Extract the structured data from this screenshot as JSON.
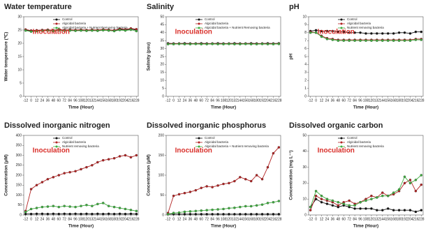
{
  "chart_data": [
    {
      "type": "line",
      "title": "Water temperature",
      "y_label": "Water temperature (℃)",
      "x_label": "Time (Hour)",
      "annotation": "Inoculation",
      "x": [
        -12,
        0,
        12,
        24,
        36,
        48,
        60,
        72,
        84,
        96,
        108,
        120,
        132,
        144,
        156,
        168,
        180,
        192,
        204,
        216,
        228
      ],
      "xticks": [
        -12,
        0,
        12,
        24,
        36,
        48,
        60,
        72,
        84,
        96,
        108,
        120,
        132,
        144,
        156,
        168,
        180,
        192,
        204,
        216,
        228
      ],
      "xlim": [
        -16,
        232
      ],
      "ylim": [
        0,
        30
      ],
      "yticks": [
        0,
        5,
        10,
        15,
        20,
        25,
        30
      ],
      "legend": "top",
      "series": [
        {
          "name": "Control",
          "color": "#111111",
          "values": [
            25.0,
            24.6,
            24.8,
            24.9,
            25.0,
            24.8,
            25.1,
            24.9,
            25.0,
            24.9,
            25.0,
            24.9,
            25.0,
            24.9,
            25.1,
            25.0,
            24.8,
            25.2,
            25.0,
            25.4,
            25.0
          ]
        },
        {
          "name": "Algicidal bacteria",
          "color": "#b22222",
          "values": [
            25.2,
            24.8,
            24.9,
            25.0,
            25.1,
            24.9,
            25.2,
            25.0,
            25.1,
            25.0,
            25.1,
            25.0,
            25.1,
            25.0,
            25.2,
            25.1,
            24.9,
            25.5,
            25.2,
            25.6,
            25.3
          ]
        },
        {
          "name": "Algicidal bacteria + Nutrient Removing bacteria",
          "color": "#3fae3f",
          "values": [
            24.8,
            24.4,
            24.6,
            24.7,
            24.8,
            24.6,
            24.9,
            24.7,
            24.8,
            24.7,
            24.8,
            24.7,
            24.8,
            24.7,
            24.9,
            24.8,
            24.6,
            25.0,
            24.8,
            25.1,
            24.6
          ]
        }
      ]
    },
    {
      "type": "line",
      "title": "Salinity",
      "y_label": "Salinity (psu)",
      "x_label": "Time (Hour)",
      "annotation": "Inoculation",
      "x": [
        -12,
        0,
        12,
        24,
        36,
        48,
        60,
        72,
        84,
        96,
        108,
        120,
        132,
        144,
        156,
        168,
        180,
        192,
        204,
        216,
        228
      ],
      "xticks": [
        -12,
        0,
        12,
        24,
        36,
        48,
        60,
        72,
        84,
        96,
        108,
        120,
        132,
        144,
        156,
        168,
        180,
        192,
        204,
        216,
        228
      ],
      "xlim": [
        -16,
        232
      ],
      "ylim": [
        0,
        50
      ],
      "yticks": [
        0,
        5,
        10,
        15,
        20,
        25,
        30,
        35,
        40,
        45,
        50
      ],
      "legend": "top",
      "series": [
        {
          "name": "Control",
          "color": "#111111",
          "values": [
            33.3,
            33.2,
            33.2,
            33.3,
            33.2,
            33.2,
            33.3,
            33.2,
            33.2,
            33.3,
            33.2,
            33.2,
            33.3,
            33.2,
            33.2,
            33.3,
            33.2,
            33.2,
            33.3,
            33.2,
            33.3
          ]
        },
        {
          "name": "Algicidal bacteria",
          "color": "#b22222",
          "values": [
            33.0,
            33.0,
            33.1,
            33.0,
            33.0,
            33.1,
            33.0,
            33.0,
            33.1,
            33.0,
            33.0,
            33.1,
            33.0,
            33.0,
            33.1,
            33.0,
            33.0,
            33.1,
            33.0,
            33.0,
            33.1
          ]
        },
        {
          "name": "Algicidal bacteria + Nutrient Removing bacteria",
          "color": "#3fae3f",
          "values": [
            32.8,
            32.8,
            32.9,
            32.8,
            32.8,
            32.9,
            32.8,
            32.8,
            32.9,
            32.8,
            32.8,
            32.9,
            32.8,
            32.8,
            32.9,
            32.8,
            32.8,
            32.9,
            32.8,
            32.8,
            32.9
          ]
        }
      ]
    },
    {
      "type": "line",
      "title": "pH",
      "y_label": "pH",
      "x_label": "Time (Hour)",
      "annotation": "Inoculation",
      "x": [
        -12,
        0,
        12,
        24,
        36,
        48,
        60,
        72,
        84,
        96,
        108,
        120,
        132,
        144,
        156,
        168,
        180,
        192,
        204,
        216,
        228
      ],
      "xticks": [
        -12,
        0,
        12,
        24,
        36,
        48,
        60,
        72,
        84,
        96,
        108,
        120,
        132,
        144,
        156,
        168,
        180,
        192,
        204,
        216,
        228
      ],
      "xlim": [
        -16,
        232
      ],
      "ylim": [
        0,
        10
      ],
      "yticks": [
        0,
        1,
        2,
        3,
        4,
        5,
        6,
        7,
        8,
        9,
        10
      ],
      "legend": "top",
      "series": [
        {
          "name": "Control",
          "color": "#111111",
          "values": [
            8.2,
            8.3,
            8.2,
            8.2,
            8.2,
            8.1,
            8.1,
            8.0,
            8.0,
            8.0,
            7.9,
            7.9,
            7.9,
            7.9,
            7.9,
            7.9,
            8.0,
            8.0,
            7.9,
            8.1,
            8.1
          ]
        },
        {
          "name": "Algicidal bacteria",
          "color": "#b22222",
          "values": [
            8.1,
            8.0,
            7.6,
            7.3,
            7.2,
            7.1,
            7.1,
            7.1,
            7.1,
            7.1,
            7.1,
            7.1,
            7.1,
            7.1,
            7.1,
            7.1,
            7.1,
            7.1,
            7.1,
            7.2,
            7.2
          ]
        },
        {
          "name": "Nutrient removing bacteria",
          "color": "#3fae3f",
          "values": [
            8.0,
            8.0,
            7.5,
            7.2,
            7.1,
            7.0,
            7.0,
            7.0,
            7.0,
            7.0,
            7.0,
            7.0,
            7.0,
            7.0,
            7.0,
            7.0,
            7.0,
            7.0,
            7.0,
            7.1,
            7.1
          ]
        }
      ]
    },
    {
      "type": "line",
      "title": "Dissolved inorganic nitrogen",
      "y_label": "Concentration (μM)",
      "x_label": "Time (Hour)",
      "annotation": "Inoculation",
      "x": [
        -12,
        0,
        12,
        24,
        36,
        48,
        60,
        72,
        84,
        96,
        108,
        120,
        132,
        144,
        156,
        168,
        180,
        192,
        204,
        216,
        228
      ],
      "xticks": [
        -12,
        0,
        12,
        24,
        36,
        48,
        60,
        72,
        84,
        96,
        108,
        120,
        132,
        144,
        156,
        168,
        180,
        192,
        204,
        216,
        228
      ],
      "xlim": [
        -16,
        232
      ],
      "ylim": [
        0,
        400
      ],
      "yticks": [
        0,
        50,
        100,
        150,
        200,
        250,
        300,
        350,
        400
      ],
      "legend": "top",
      "series": [
        {
          "name": "Control",
          "color": "#111111",
          "values": [
            5,
            5,
            6,
            6,
            5,
            6,
            5,
            6,
            5,
            6,
            5,
            6,
            5,
            6,
            5,
            6,
            5,
            6,
            5,
            6,
            5
          ]
        },
        {
          "name": "Algicidal bacteria",
          "color": "#b22222",
          "values": [
            20,
            130,
            150,
            165,
            180,
            190,
            200,
            210,
            215,
            220,
            230,
            240,
            250,
            265,
            275,
            280,
            285,
            295,
            300,
            290,
            300
          ]
        },
        {
          "name": "Nutrient removing bacteria",
          "color": "#3fae3f",
          "values": [
            15,
            30,
            35,
            40,
            42,
            45,
            40,
            45,
            42,
            40,
            45,
            50,
            45,
            55,
            60,
            45,
            40,
            35,
            30,
            25,
            20
          ]
        }
      ]
    },
    {
      "type": "line",
      "title": "Dissolved inorganic phosphorus",
      "y_label": "Concentration (μM)",
      "x_label": "Time (Hour)",
      "annotation": "Inoculation",
      "x": [
        -12,
        0,
        12,
        24,
        36,
        48,
        60,
        72,
        84,
        96,
        108,
        120,
        132,
        144,
        156,
        168,
        180,
        192,
        204,
        216,
        228
      ],
      "xticks": [
        -12,
        0,
        12,
        24,
        36,
        48,
        60,
        72,
        84,
        96,
        108,
        120,
        132,
        144,
        156,
        168,
        180,
        192,
        204,
        216,
        228
      ],
      "xlim": [
        -16,
        232
      ],
      "ylim": [
        0,
        200
      ],
      "yticks": [
        0,
        50,
        100,
        150,
        200
      ],
      "legend": "top",
      "series": [
        {
          "name": "Control",
          "color": "#111111",
          "values": [
            2,
            2,
            2,
            2,
            2,
            2,
            2,
            2,
            2,
            2,
            2,
            2,
            2,
            2,
            2,
            2,
            2,
            2,
            2,
            2,
            2
          ]
        },
        {
          "name": "Algicidal bacteria",
          "color": "#b22222",
          "values": [
            5,
            48,
            52,
            55,
            58,
            62,
            68,
            72,
            70,
            74,
            78,
            80,
            85,
            95,
            90,
            85,
            100,
            90,
            120,
            155,
            170
          ]
        },
        {
          "name": "Algicidal bacteria + Nutrient removing bacteria",
          "color": "#3fae3f",
          "values": [
            2,
            5,
            6,
            8,
            9,
            10,
            11,
            12,
            13,
            14,
            15,
            17,
            18,
            20,
            22,
            22,
            24,
            26,
            30,
            32,
            35
          ]
        }
      ]
    },
    {
      "type": "line",
      "title": "Dissolved organic carbon",
      "y_label": "Concentration (mg L⁻¹)",
      "x_label": "Time (Hour)",
      "annotation": "Inoculation",
      "x": [
        -12,
        0,
        12,
        24,
        36,
        48,
        60,
        72,
        84,
        96,
        108,
        120,
        132,
        144,
        156,
        168,
        180,
        192,
        204,
        216,
        228
      ],
      "xticks": [
        -12,
        0,
        12,
        24,
        36,
        48,
        60,
        72,
        84,
        96,
        108,
        120,
        132,
        144,
        156,
        168,
        180,
        192,
        204,
        216,
        228
      ],
      "xlim": [
        -16,
        232
      ],
      "ylim": [
        0,
        50
      ],
      "yticks": [
        0,
        10,
        20,
        30,
        40,
        50
      ],
      "legend": "top",
      "series": [
        {
          "name": "Control",
          "color": "#111111",
          "values": [
            5,
            10,
            8,
            7,
            6,
            5,
            6,
            5,
            4,
            4,
            4,
            4,
            3,
            3,
            4,
            3,
            3,
            3,
            3,
            2,
            3
          ]
        },
        {
          "name": "Algicidal bacteria",
          "color": "#b22222",
          "values": [
            3,
            12,
            10,
            9,
            8,
            6,
            8,
            9,
            7,
            8,
            10,
            12,
            11,
            14,
            12,
            13,
            15,
            20,
            22,
            15,
            19
          ]
        },
        {
          "name": "Nutrient removing bacteria",
          "color": "#3fae3f",
          "values": [
            5,
            15,
            12,
            10,
            9,
            8,
            7,
            6,
            6,
            8,
            9,
            10,
            11,
            12,
            12,
            14,
            16,
            24,
            20,
            22,
            25
          ]
        }
      ]
    }
  ]
}
